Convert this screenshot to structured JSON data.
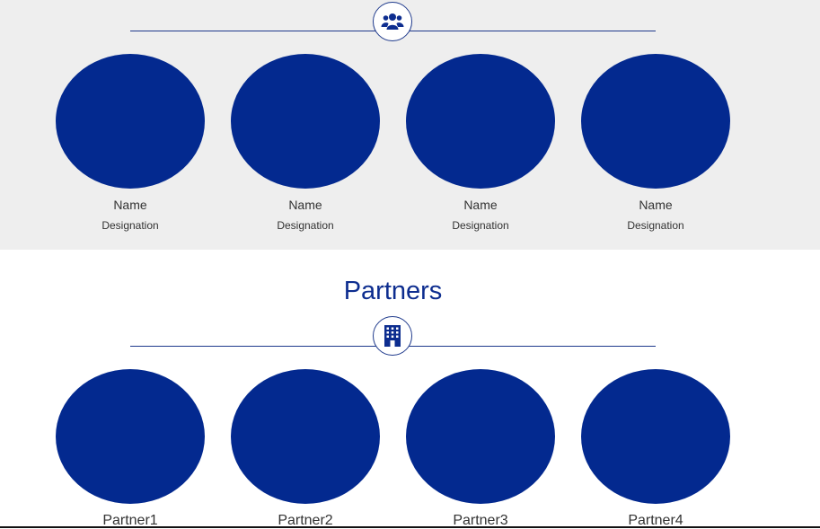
{
  "team": {
    "icon": "users-icon",
    "members": [
      {
        "name": "Name",
        "designation": "Designation"
      },
      {
        "name": "Name",
        "designation": "Designation"
      },
      {
        "name": "Name",
        "designation": "Designation"
      },
      {
        "name": "Name",
        "designation": "Designation"
      }
    ]
  },
  "partners": {
    "title": "Partners",
    "icon": "building-icon",
    "items": [
      {
        "name": "Partner1"
      },
      {
        "name": "Partner2"
      },
      {
        "name": "Partner3"
      },
      {
        "name": "Partner4"
      }
    ]
  },
  "colors": {
    "accent": "#03298f",
    "section_bg": "#eeeeee",
    "title": "#0d2d8f"
  }
}
